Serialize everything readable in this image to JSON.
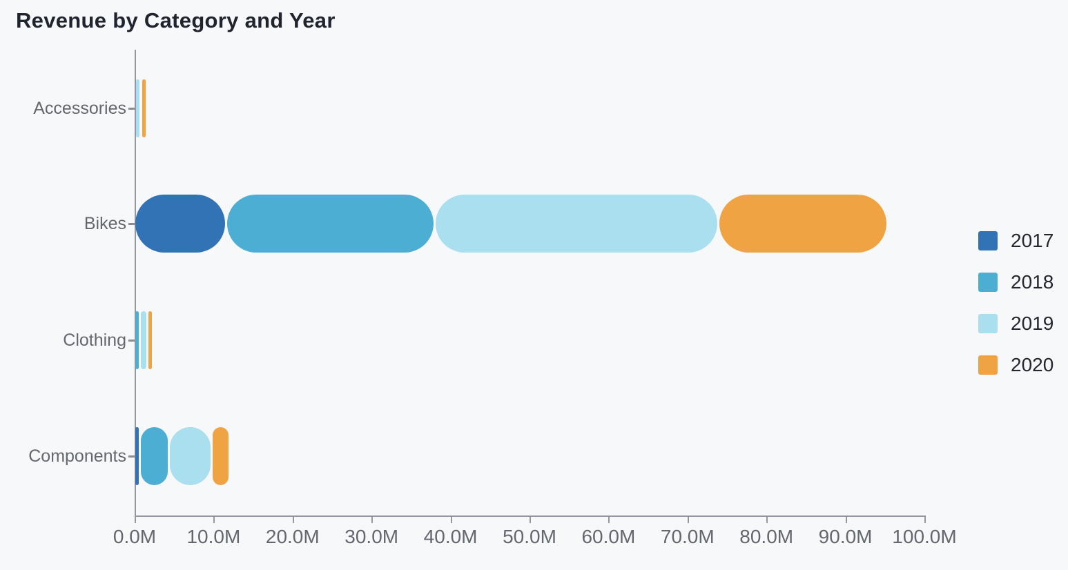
{
  "title": "Revenue by Category and Year",
  "colors": {
    "background": "#f7f8fa",
    "title_text": "#20242e",
    "axis_text": "#63676e",
    "axis_line": "#94989e",
    "legend_text": "#23272f"
  },
  "chart_data": {
    "type": "bar",
    "orientation": "horizontal",
    "stacked": true,
    "title": "Revenue by Category and Year",
    "categories": [
      "Accessories",
      "Bikes",
      "Clothing",
      "Components"
    ],
    "series": [
      {
        "name": "2017",
        "color": "#3273b5",
        "values": [
          0.02,
          11.5,
          0.03,
          0.6
        ]
      },
      {
        "name": "2018",
        "color": "#4daed3",
        "values": [
          0.09,
          26.4,
          0.5,
          3.6
        ]
      },
      {
        "name": "2019",
        "color": "#a9dfee",
        "values": [
          0.59,
          35.9,
          1.0,
          5.5
        ]
      },
      {
        "name": "2020",
        "color": "#f0a342",
        "values": [
          0.57,
          21.3,
          0.6,
          2.1
        ]
      }
    ],
    "value_unit": "M",
    "xlabel": "",
    "ylabel": "",
    "xlim": [
      0,
      100
    ],
    "x_ticks": [
      "0.0M",
      "10.0M",
      "20.0M",
      "30.0M",
      "40.0M",
      "50.0M",
      "60.0M",
      "70.0M",
      "80.0M",
      "90.0M",
      "100.0M"
    ],
    "grid": false,
    "legend_position": "right"
  }
}
